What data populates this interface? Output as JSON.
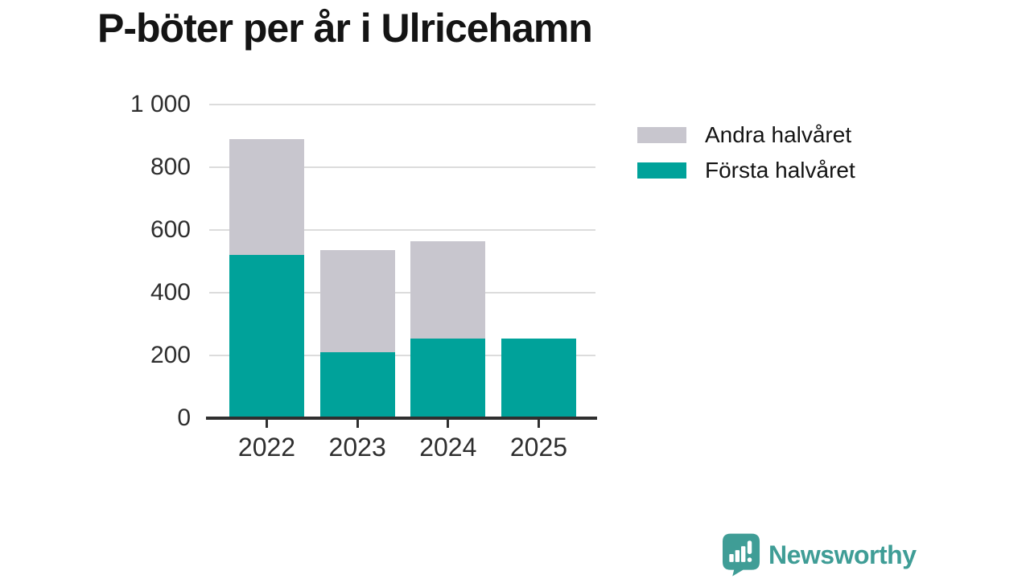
{
  "chart": {
    "title": "P-böter per år i Ulricehamn"
  },
  "chart_data": {
    "type": "bar",
    "stacked": true,
    "title": "P-böter per år i Ulricehamn",
    "xlabel": "",
    "ylabel": "",
    "categories": [
      "2022",
      "2023",
      "2024",
      "2025"
    ],
    "series": [
      {
        "name": "Första halvåret",
        "color": "#00a29a",
        "values": [
          520,
          210,
          255,
          255
        ]
      },
      {
        "name": "Andra halvåret",
        "color": "#c8c6ce",
        "values": [
          370,
          325,
          310,
          0
        ]
      }
    ],
    "totals": [
      890,
      535,
      565,
      255
    ],
    "ylim": [
      0,
      1000
    ],
    "yticks": [
      0,
      200,
      400,
      600,
      800,
      1000
    ],
    "ytick_labels": [
      "0",
      "200",
      "400",
      "600",
      "800",
      "1 000"
    ],
    "grid": true,
    "legend_position": "right"
  },
  "legend": {
    "items": [
      {
        "label": "Andra halvåret",
        "color": "#c8c6ce"
      },
      {
        "label": "Första halvåret",
        "color": "#00a29a"
      }
    ]
  },
  "footer": {
    "brand": "Newsworthy",
    "brand_color": "#3f9d96"
  },
  "colors": {
    "first_half": "#00a29a",
    "second_half": "#c8c6ce",
    "gridline": "#dcdcdc",
    "axis": "#2f2f2f",
    "text": "#141414"
  }
}
